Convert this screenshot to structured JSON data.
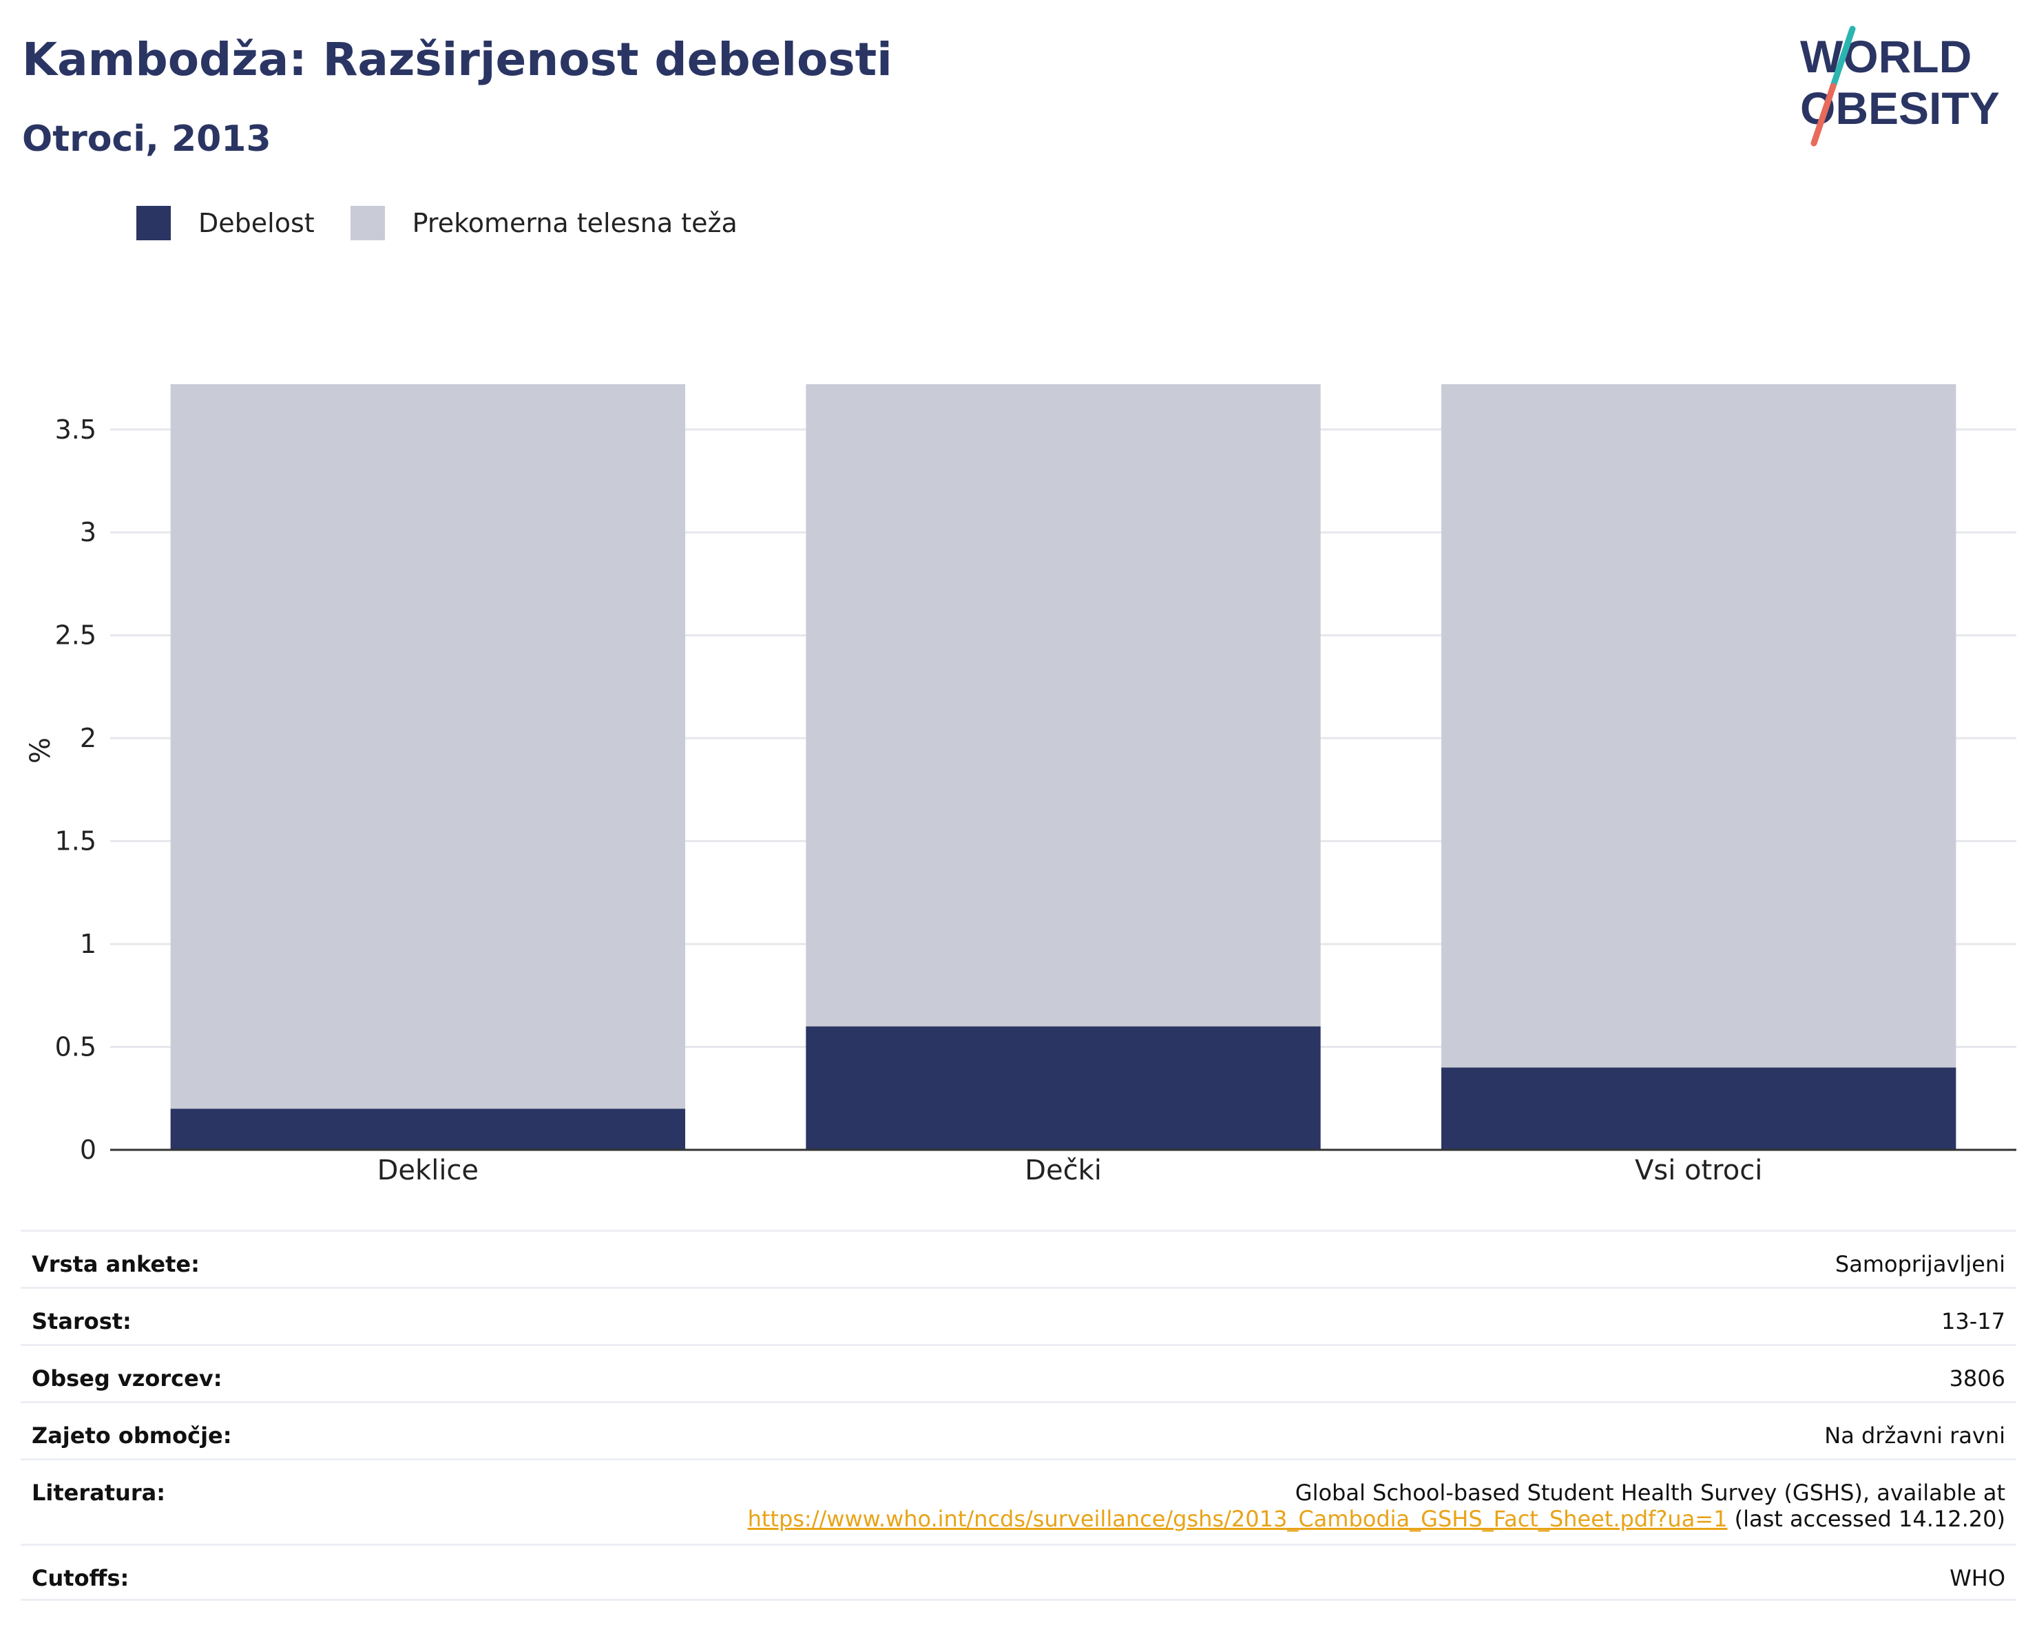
{
  "header": {
    "title": "Kambodža: Razširjenost debelosti",
    "subtitle": "Otroci, 2013"
  },
  "logo": {
    "line1": "WORLD",
    "line2": "OBESITY",
    "colors": {
      "text": "#2a3563",
      "teal": "#2bb5b0",
      "coral": "#e86a5a"
    }
  },
  "legend": [
    {
      "label": "Debelost",
      "color": "#2a3563"
    },
    {
      "label": "Prekomerna telesna teža",
      "color": "#c9cbd6"
    }
  ],
  "chart_data": {
    "type": "bar",
    "stacked": true,
    "categories": [
      "Deklice",
      "Dečki",
      "Vsi otroci"
    ],
    "series": [
      {
        "name": "Debelost",
        "color": "#2a3563",
        "values": [
          0.2,
          0.6,
          0.4
        ]
      },
      {
        "name": "Prekomerna telesna teža",
        "color": "#c9cbd6",
        "values": [
          3.52,
          3.12,
          3.32
        ]
      }
    ],
    "ylabel": "%",
    "ylim": [
      0,
      3.72
    ],
    "yticks": [
      0,
      0.5,
      1,
      1.5,
      2,
      2.5,
      3,
      3.5
    ],
    "ytick_labels": [
      "0",
      "0.5",
      "1",
      "1.5",
      "2",
      "2.5",
      "3",
      "3.5"
    ],
    "grid": true,
    "legend_position": "top-left"
  },
  "info_table": [
    {
      "label": "Vrsta ankete:",
      "value": "Samoprijavljeni"
    },
    {
      "label": "Starost:",
      "value": "13-17"
    },
    {
      "label": "Obseg vzorcev:",
      "value": "3806"
    },
    {
      "label": "Zajeto območje:",
      "value": "Na državni ravni"
    },
    {
      "label": "Literatura:",
      "value_line1": "Global School-based Student Health Survey (GSHS), available at",
      "link": "https://www.who.int/ncds/surveillance/gshs/2013_Cambodia_GSHS_Fact_Sheet.pdf?ua=1",
      "value_suffix": " (last accessed 14.12.20)"
    },
    {
      "label": "Cutoffs:",
      "value": "WHO"
    }
  ]
}
